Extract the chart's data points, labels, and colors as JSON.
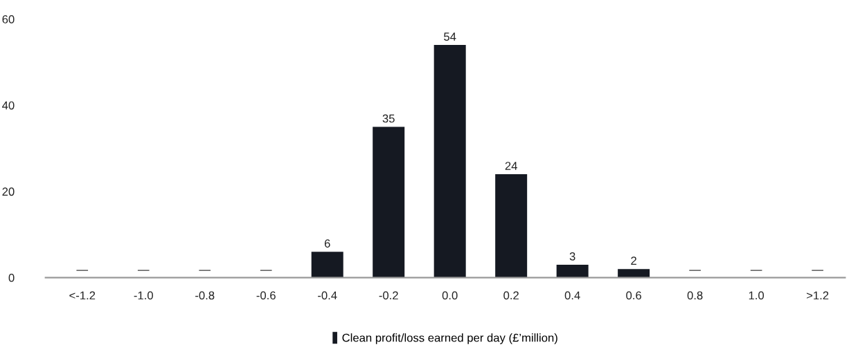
{
  "chart_data": {
    "type": "bar",
    "categories": [
      "<-1.2",
      "-1.0",
      "-0.8",
      "-0.6",
      "-0.4",
      "-0.2",
      "0.0",
      "0.2",
      "0.4",
      "0.6",
      "0.8",
      "1.0",
      ">1.2"
    ],
    "series": [
      {
        "name": "Clean profit/loss earned per day (£’million)",
        "color": "#151922",
        "values": [
          0,
          0,
          0,
          0,
          6,
          35,
          54,
          24,
          3,
          2,
          0,
          0,
          0
        ],
        "value_labels": [
          "—",
          "—",
          "—",
          "—",
          "6",
          "35",
          "54",
          "24",
          "3",
          "2",
          "—",
          "—",
          "—"
        ]
      }
    ],
    "ylim": [
      0,
      60
    ],
    "yticks": [
      0,
      20,
      40,
      60
    ],
    "grid": false,
    "legend": "bottom"
  }
}
